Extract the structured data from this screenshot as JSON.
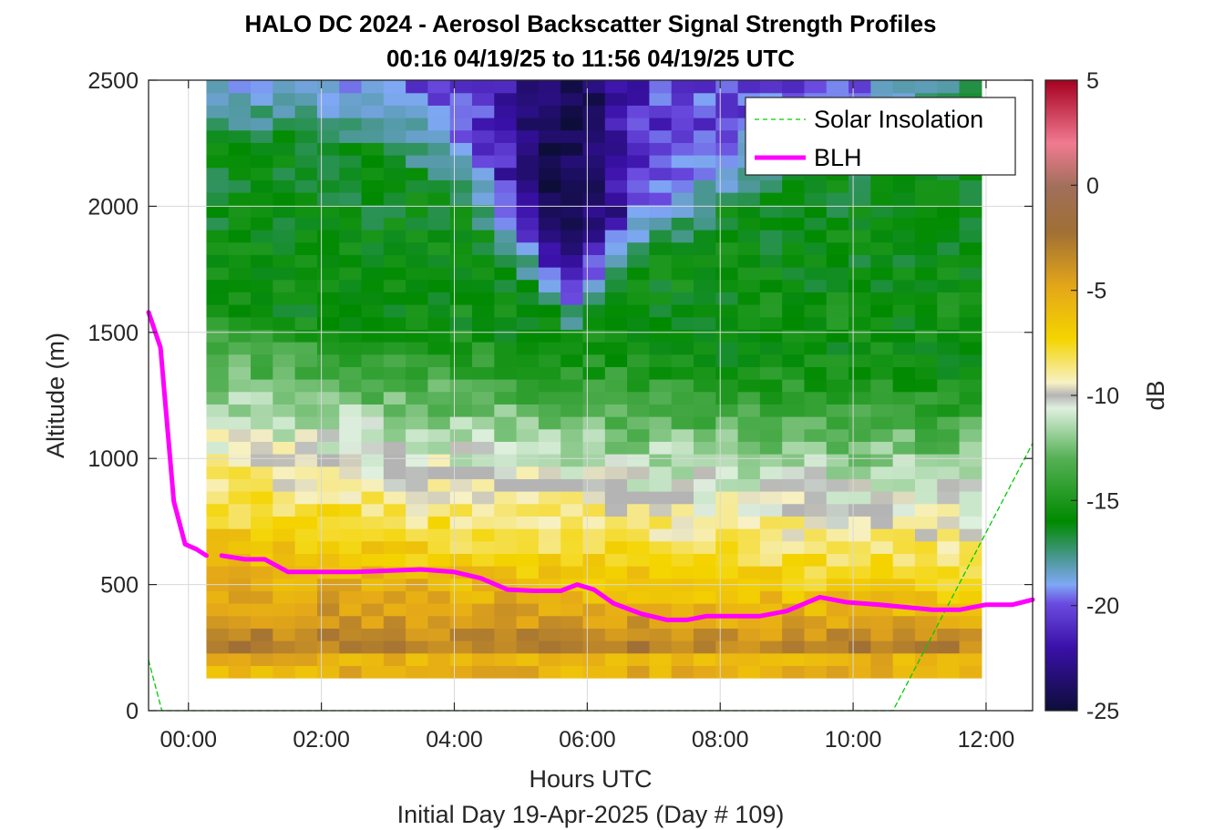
{
  "chart_data": {
    "type": "heatmap",
    "title": "HALO DC 2024 - Aerosol Backscatter Signal Strength Profiles",
    "subtitle": "00:16 04/19/25 to 11:56 04/19/25  UTC",
    "xlabel": "Hours UTC",
    "xlabel2": "Initial Day 19-Apr-2025 (Day # 109)",
    "ylabel": "Altitude (m)",
    "colorbar_label": "dB",
    "xlim": [
      -0.6,
      12.7
    ],
    "ylim": [
      0,
      2500
    ],
    "x_ticks": [
      0,
      2,
      4,
      6,
      8,
      10,
      12
    ],
    "x_tick_labels": [
      "00:00",
      "02:00",
      "04:00",
      "06:00",
      "08:00",
      "10:00",
      "12:00"
    ],
    "y_ticks": [
      0,
      500,
      1000,
      1500,
      2000,
      2500
    ],
    "y_tick_labels": [
      "0",
      "500",
      "1000",
      "1500",
      "2000",
      "2500"
    ],
    "colorbar_range": [
      -25,
      5
    ],
    "colorbar_ticks": [
      -25,
      -20,
      -15,
      -10,
      -5,
      0,
      5
    ],
    "colorbar_tick_labels": [
      "-25",
      "-20",
      "-15",
      "-10",
      "-5",
      "0",
      "5"
    ],
    "grid": true,
    "legend_position": "top-right",
    "heatmap": {
      "x_start": 0.27,
      "x_end": 11.93,
      "columns": 35,
      "z_start": 130,
      "z_end": 2500,
      "rows": 48
    },
    "colors": {
      "blh": "#ff00ff",
      "solar": "#00cc00",
      "missing": "#b4b4b4"
    },
    "series": [
      {
        "name": "Solar Insolation",
        "style": "dashed",
        "x": [
          -0.6,
          -0.4,
          10.6,
          12.7
        ],
        "y": [
          200,
          0,
          0,
          1060
        ]
      },
      {
        "name": "BLH",
        "style": "solid",
        "x": [
          -0.6,
          -0.42,
          -0.22,
          -0.05,
          0.12,
          0.27,
          null,
          0.5,
          0.85,
          1.15,
          1.5,
          2.0,
          2.5,
          3.0,
          3.5,
          4.0,
          4.4,
          4.8,
          5.2,
          5.6,
          5.85,
          6.1,
          6.4,
          6.8,
          7.2,
          7.5,
          7.8,
          8.2,
          8.6,
          9.0,
          9.5,
          9.9,
          10.4,
          10.8,
          11.2,
          11.6,
          12.0,
          12.4,
          12.7
        ],
        "y": [
          1580,
          1440,
          830,
          660,
          640,
          615,
          null,
          615,
          600,
          600,
          550,
          550,
          550,
          555,
          560,
          550,
          525,
          480,
          475,
          475,
          500,
          480,
          425,
          385,
          360,
          360,
          375,
          375,
          375,
          395,
          450,
          430,
          420,
          410,
          400,
          400,
          420,
          420,
          440
        ]
      }
    ]
  }
}
